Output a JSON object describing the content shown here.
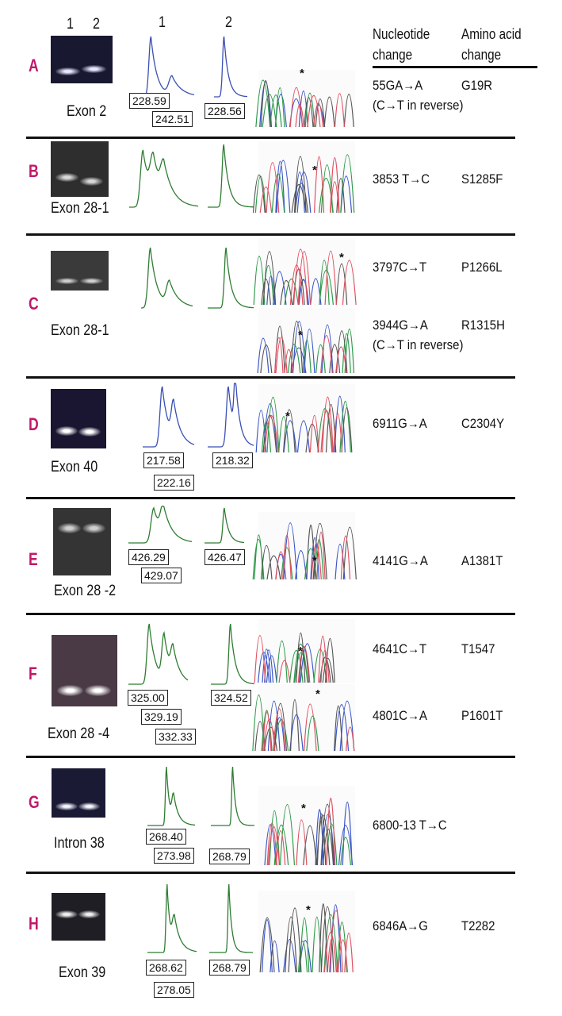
{
  "header": {
    "gel_lanes": [
      "1",
      "2"
    ],
    "trace_columns": [
      "1",
      "2"
    ],
    "nucleotide_header": [
      "Nucleotide",
      "change"
    ],
    "amino_acid_header": [
      "Amino acid",
      "change"
    ]
  },
  "colors": {
    "panel_letter": "#c0186a",
    "trace_blue": "#3a4fb5",
    "trace_green": "#2e7d32"
  },
  "panels": [
    {
      "letter": "A",
      "region": "Exon 2",
      "trace_color": "blue",
      "trace1_sizes": [
        "228.59",
        "242.51"
      ],
      "trace2_sizes": [
        "228.56"
      ],
      "asterisk": "*",
      "mutations": [
        {
          "nucleotide": "55GA→A",
          "amino_acid": "G19R",
          "note": "(C→T in reverse)"
        }
      ]
    },
    {
      "letter": "B",
      "region": "Exon 28-1",
      "trace_color": "green",
      "trace1_sizes": [],
      "trace2_sizes": [],
      "asterisk": "*",
      "mutations": [
        {
          "nucleotide": "3853 T→C",
          "amino_acid": "S1285F"
        }
      ]
    },
    {
      "letter": "C",
      "region": "Exon 28-1",
      "trace_color": "green",
      "trace1_sizes": [],
      "trace2_sizes": [],
      "asterisk": "*",
      "mutations": [
        {
          "nucleotide": "3797C→T",
          "amino_acid": "P1266L"
        },
        {
          "nucleotide": "3944G→A",
          "amino_acid": "R1315H",
          "note": "(C→T in reverse)"
        }
      ]
    },
    {
      "letter": "D",
      "region": "Exon 40",
      "trace_color": "blue",
      "trace1_sizes": [
        "217.58",
        "222.16"
      ],
      "trace2_sizes": [
        "218.32"
      ],
      "asterisk": "*",
      "mutations": [
        {
          "nucleotide": "6911G→A",
          "amino_acid": "C2304Y"
        }
      ]
    },
    {
      "letter": "E",
      "region": "Exon 28 -2",
      "trace_color": "green",
      "trace1_sizes": [
        "426.29",
        "429.07"
      ],
      "trace2_sizes": [
        "426.47"
      ],
      "asterisk": "*",
      "mutations": [
        {
          "nucleotide": "4141G→A",
          "amino_acid": "A1381T"
        }
      ]
    },
    {
      "letter": "F",
      "region": "Exon 28 -4",
      "trace_color": "green",
      "trace1_sizes": [
        "325.00",
        "329.19",
        "332.33"
      ],
      "trace2_sizes": [
        "324.52"
      ],
      "asterisk": "*",
      "mutations": [
        {
          "nucleotide": "4641C→T",
          "amino_acid": "T1547"
        },
        {
          "nucleotide": "4801C→A",
          "amino_acid": "P1601T"
        }
      ]
    },
    {
      "letter": "G",
      "region": "Intron 38",
      "trace_color": "green",
      "trace1_sizes": [
        "268.40",
        "273.98"
      ],
      "trace2_sizes": [
        "268.79"
      ],
      "asterisk": "*",
      "mutations": [
        {
          "nucleotide": "6800-13 T→C",
          "amino_acid": ""
        }
      ]
    },
    {
      "letter": "H",
      "region": "Exon 39",
      "trace_color": "green",
      "trace1_sizes": [
        "268.62",
        "278.05"
      ],
      "trace2_sizes": [
        "268.79"
      ],
      "asterisk": "*",
      "mutations": [
        {
          "nucleotide": "6846A→G",
          "amino_acid": "T2282"
        }
      ]
    }
  ]
}
